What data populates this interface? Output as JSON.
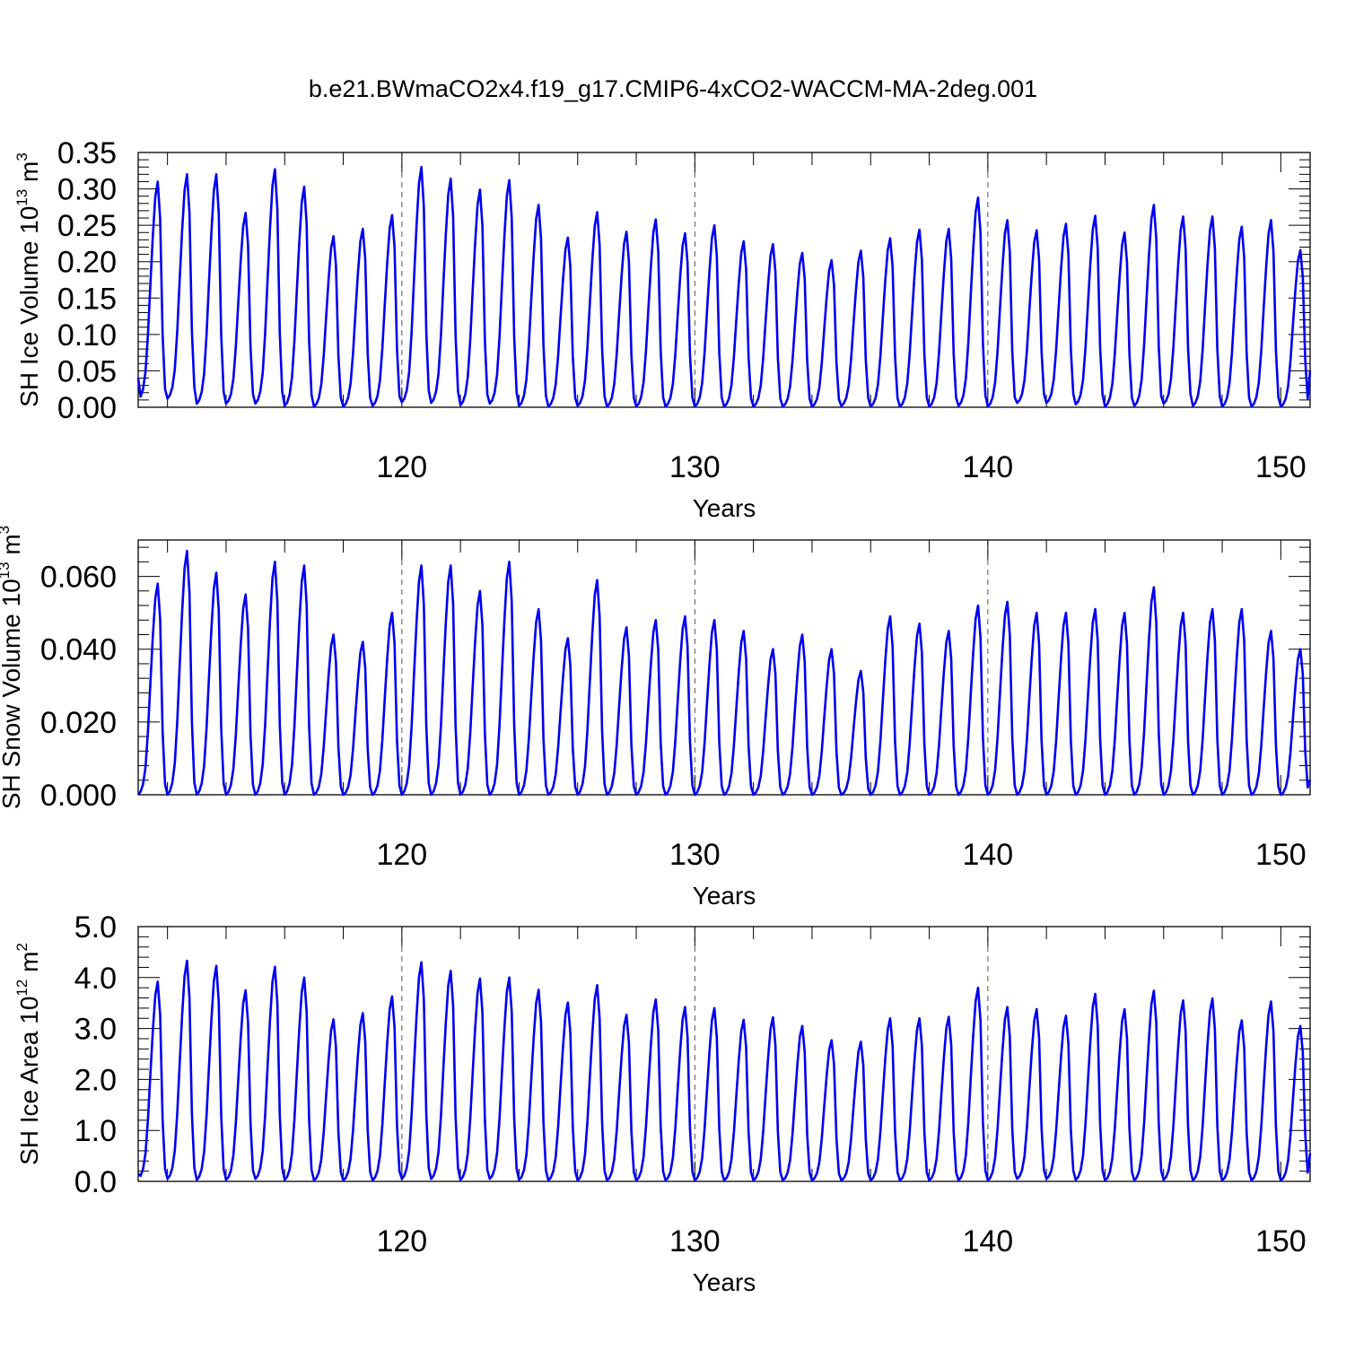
{
  "title": "b.e21.BWmaCO2x4.f19_g17.CMIP6-4xCO2-WACCM-MA-2deg.001",
  "colors": {
    "line": "#0000ee",
    "axis": "#000000",
    "grid": "#555555",
    "background": "#ffffff"
  },
  "chart_data": [
    {
      "type": "line",
      "id": "ice-volume",
      "title": "",
      "xlabel": "Years",
      "ylabel": "SH Ice Volume 10",
      "ylabel_sup": "13",
      "ylabel_unit": " m",
      "ylabel_unit_sup": "3",
      "xlim": [
        111,
        151
      ],
      "ylim": [
        0,
        0.35
      ],
      "xticks": [
        120,
        130,
        140,
        150
      ],
      "xtick_labels": [
        "120",
        "130",
        "140",
        "150"
      ],
      "yticks": [
        0,
        0.05,
        0.1,
        0.15,
        0.2,
        0.25,
        0.3,
        0.35
      ],
      "ytick_labels": [
        "0.00",
        "0.05",
        "0.10",
        "0.15",
        "0.20",
        "0.25",
        "0.30",
        "0.35"
      ],
      "grid_x": [
        120,
        130,
        140
      ],
      "series_start_year": 111.0,
      "series_end_year": 151.0,
      "start_value": 0.04,
      "end_value": 0.05,
      "annual_peaks": [
        0.31,
        0.32,
        0.32,
        0.267,
        0.327,
        0.303,
        0.235,
        0.245,
        0.264,
        0.33,
        0.314,
        0.299,
        0.312,
        0.278,
        0.233,
        0.268,
        0.241,
        0.258,
        0.239,
        0.25,
        0.228,
        0.224,
        0.212,
        0.202,
        0.215,
        0.232,
        0.244,
        0.245,
        0.288,
        0.257,
        0.243,
        0.252,
        0.263,
        0.24,
        0.278,
        0.262,
        0.262,
        0.248,
        0.257,
        0.216
      ],
      "annual_minima": [
        0.01,
        0.012,
        0.005,
        0.005,
        0.005,
        0.002,
        0.001,
        0.001,
        0.002,
        0.007,
        0.006,
        0.003,
        0.005,
        0.002,
        0.001,
        0.002,
        0.001,
        0.001,
        0.001,
        0.001,
        0.001,
        0.001,
        0.001,
        0.001,
        0.002,
        0.001,
        0.001,
        0.001,
        0.002,
        0.001,
        0.006,
        0.006,
        0.004,
        0.001,
        0.002,
        0.005,
        0.002,
        0.001,
        0.001,
        0.001
      ]
    },
    {
      "type": "line",
      "id": "snow-volume",
      "title": "",
      "xlabel": "Years",
      "ylabel": "SH Snow Volume 10",
      "ylabel_sup": "13",
      "ylabel_unit": " m",
      "ylabel_unit_sup": "3",
      "xlim": [
        111,
        151
      ],
      "ylim": [
        0,
        0.07
      ],
      "xticks": [
        120,
        130,
        140,
        150
      ],
      "xtick_labels": [
        "120",
        "130",
        "140",
        "150"
      ],
      "yticks": [
        0,
        0.02,
        0.04,
        0.06
      ],
      "ytick_labels": [
        "0.000",
        "0.020",
        "0.040",
        "0.060"
      ],
      "grid_x": [
        120,
        130,
        140
      ],
      "series_start_year": 111.0,
      "series_end_year": 151.0,
      "start_value": 0.0,
      "end_value": 0.004,
      "annual_peaks": [
        0.058,
        0.067,
        0.061,
        0.055,
        0.064,
        0.063,
        0.044,
        0.042,
        0.05,
        0.063,
        0.063,
        0.056,
        0.064,
        0.051,
        0.043,
        0.059,
        0.046,
        0.048,
        0.049,
        0.048,
        0.045,
        0.04,
        0.044,
        0.04,
        0.034,
        0.049,
        0.047,
        0.045,
        0.052,
        0.053,
        0.05,
        0.05,
        0.051,
        0.05,
        0.057,
        0.05,
        0.051,
        0.051,
        0.045,
        0.04
      ],
      "annual_minima": [
        0.0,
        0.0,
        0.0,
        0.0,
        0.0,
        0.0,
        0.0,
        0.0,
        0.0,
        0.0,
        0.0,
        0.0,
        0.0,
        0.0,
        0.0,
        0.0,
        0.0,
        0.0,
        0.0,
        0.0,
        0.0,
        0.0,
        0.0,
        0.0,
        0.0,
        0.0,
        0.0,
        0.0,
        0.0,
        0.0,
        0.0,
        0.0,
        0.0,
        0.0,
        0.0,
        0.0,
        0.0,
        0.0,
        0.0,
        0.0
      ]
    },
    {
      "type": "line",
      "id": "ice-area",
      "title": "",
      "xlabel": "Years",
      "ylabel": "SH Ice Area 10",
      "ylabel_sup": "12",
      "ylabel_unit": " m",
      "ylabel_unit_sup": "2",
      "xlim": [
        111,
        151
      ],
      "ylim": [
        0,
        5
      ],
      "xticks": [
        120,
        130,
        140,
        150
      ],
      "xtick_labels": [
        "120",
        "130",
        "140",
        "150"
      ],
      "yticks": [
        0,
        1,
        2,
        3,
        4,
        5
      ],
      "ytick_labels": [
        "0.0",
        "1.0",
        "2.0",
        "3.0",
        "4.0",
        "5.0"
      ],
      "grid_x": [
        120,
        130,
        140
      ],
      "series_start_year": 111.0,
      "series_end_year": 151.0,
      "start_value": 0.15,
      "end_value": 0.55,
      "annual_peaks": [
        3.92,
        4.33,
        4.23,
        3.75,
        4.21,
        4.0,
        3.18,
        3.3,
        3.63,
        4.3,
        4.13,
        3.98,
        4.0,
        3.76,
        3.51,
        3.85,
        3.27,
        3.57,
        3.42,
        3.4,
        3.17,
        3.22,
        3.05,
        2.77,
        2.74,
        3.2,
        3.2,
        3.23,
        3.8,
        3.42,
        3.38,
        3.25,
        3.68,
        3.38,
        3.74,
        3.55,
        3.59,
        3.16,
        3.53,
        3.05
      ],
      "annual_minima": [
        0.05,
        0.05,
        0.03,
        0.03,
        0.05,
        0.03,
        0.02,
        0.02,
        0.02,
        0.05,
        0.05,
        0.03,
        0.05,
        0.03,
        0.02,
        0.02,
        0.02,
        0.02,
        0.02,
        0.02,
        0.02,
        0.02,
        0.02,
        0.02,
        0.02,
        0.02,
        0.02,
        0.02,
        0.02,
        0.02,
        0.05,
        0.05,
        0.03,
        0.02,
        0.02,
        0.03,
        0.02,
        0.02,
        0.02,
        0.02
      ]
    }
  ]
}
